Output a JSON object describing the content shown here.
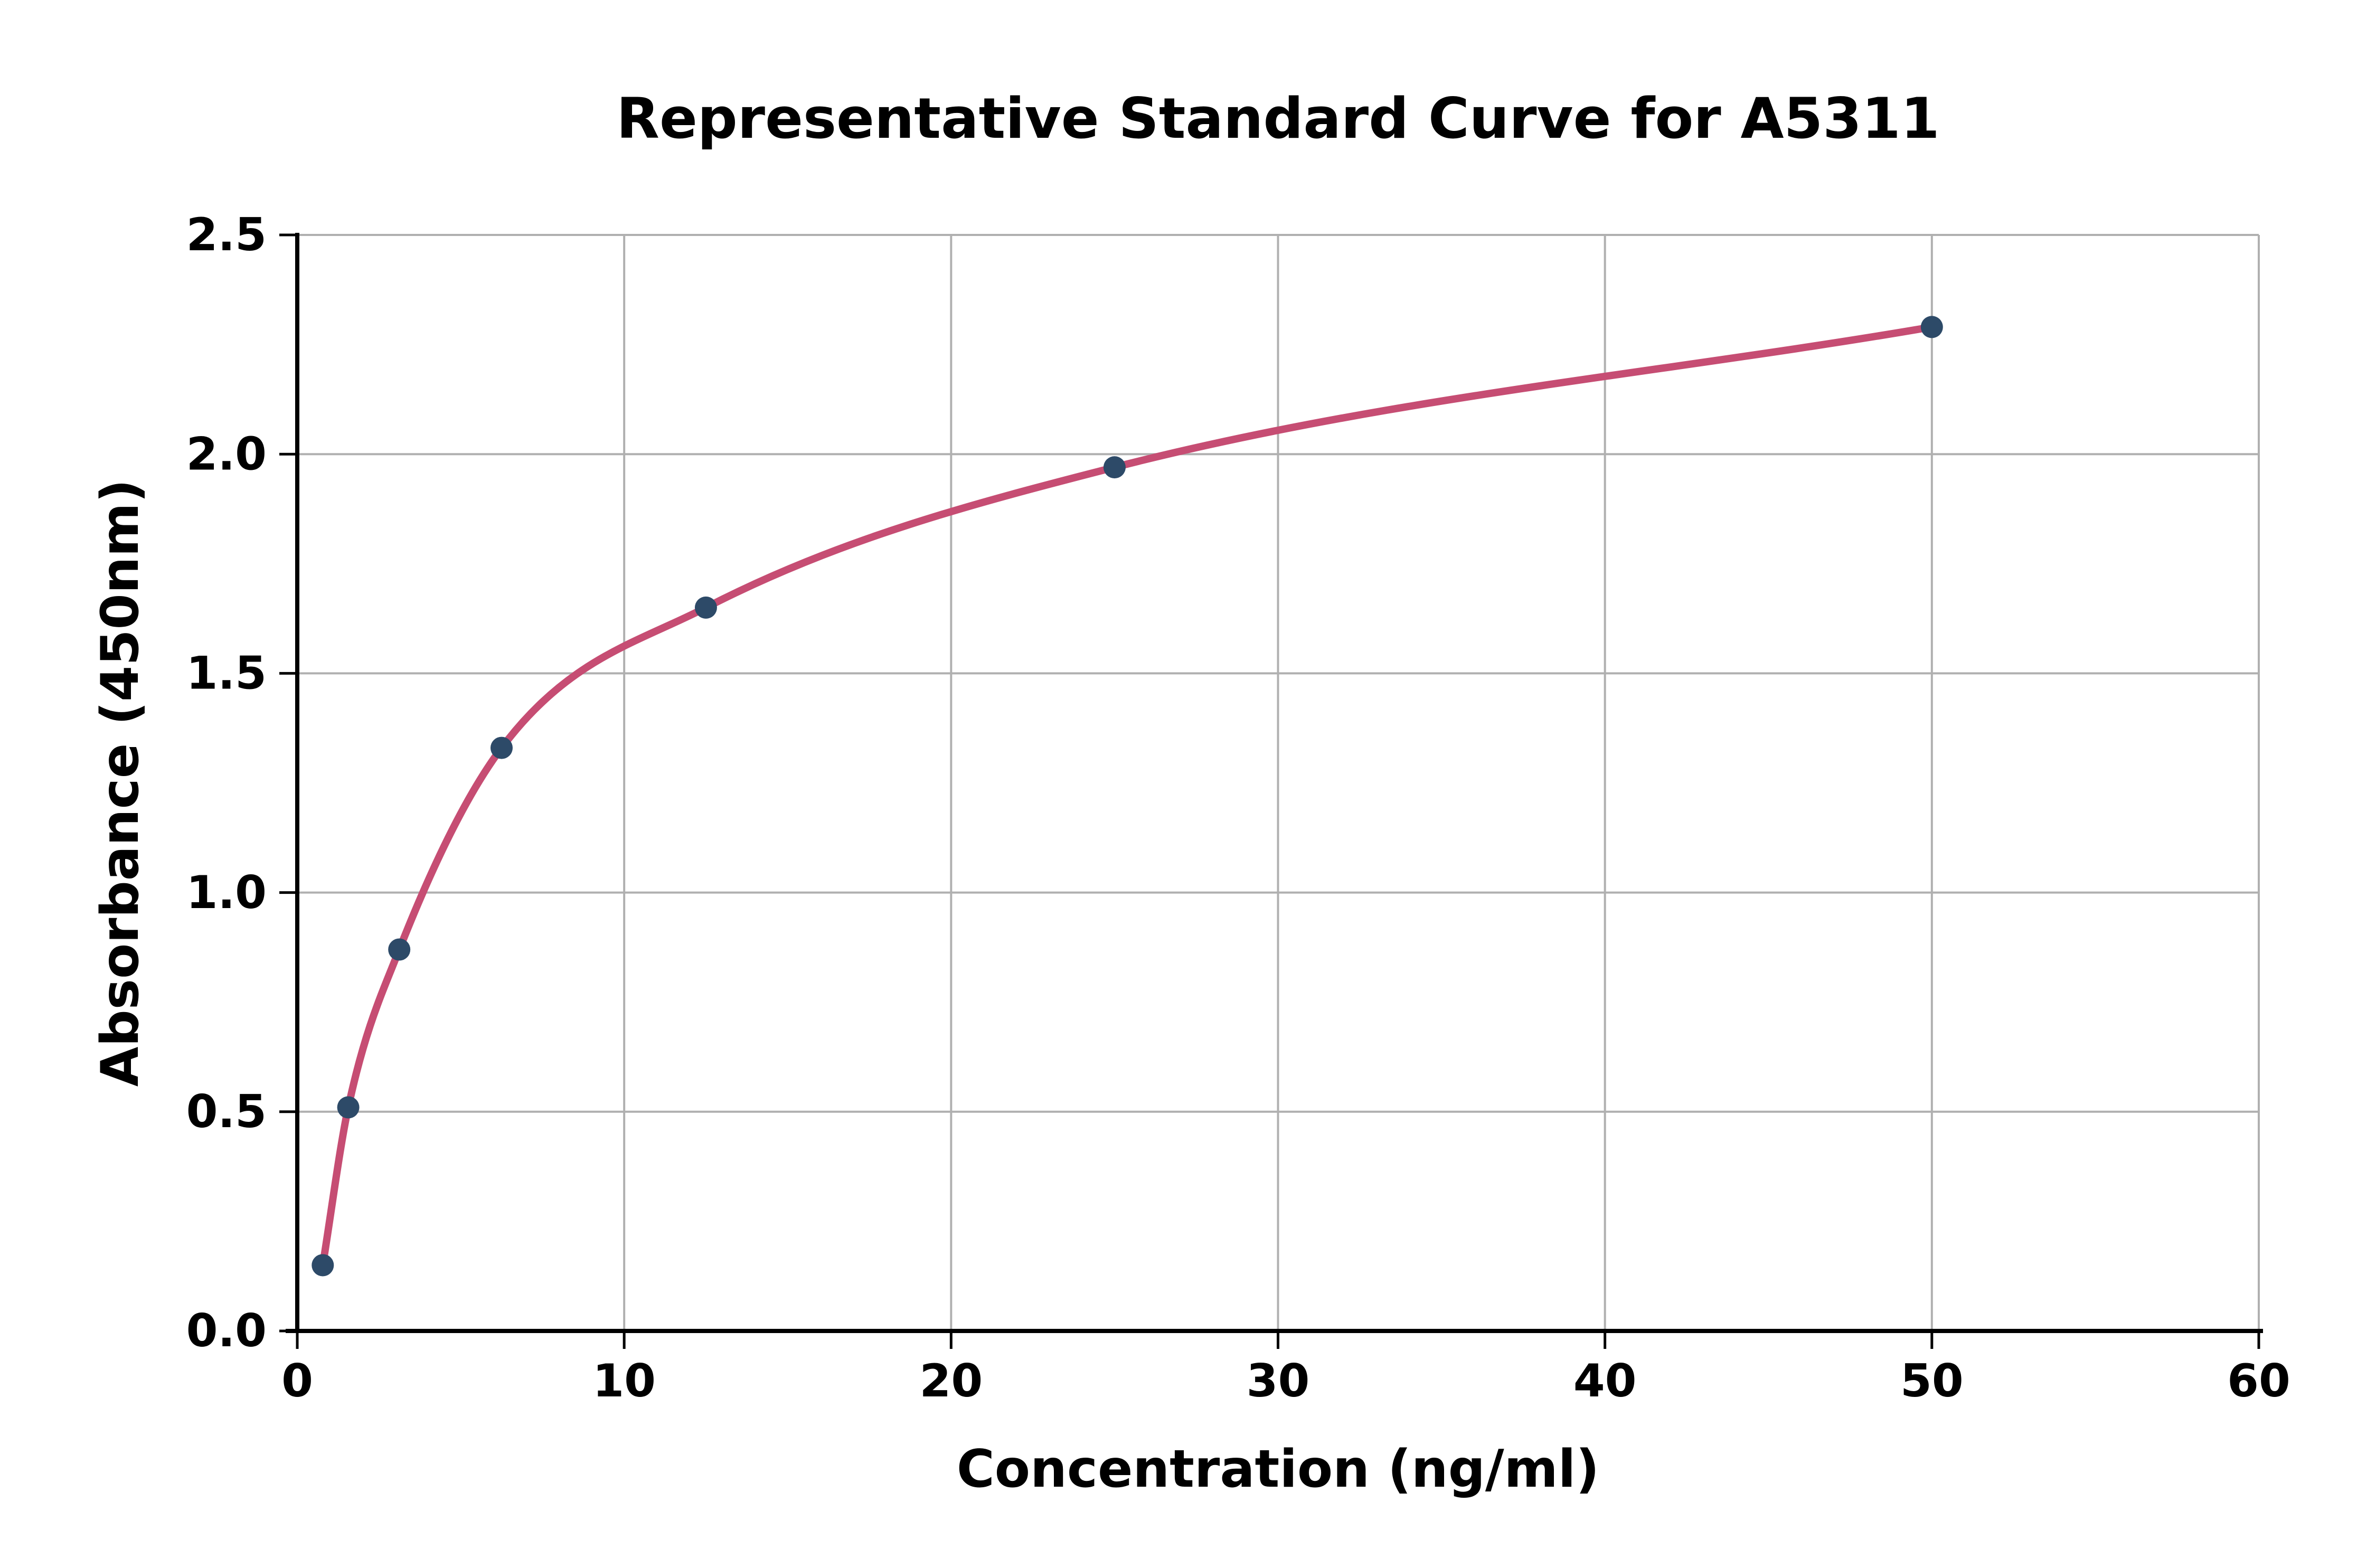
{
  "title": "Representative Standard Curve for A5311",
  "chart_data": {
    "type": "scatter",
    "title": "Representative Standard Curve for A5311",
    "xlabel": "Concentration (ng/ml)",
    "ylabel": "Absorbance (450nm)",
    "x": [
      0.78,
      1.56,
      3.12,
      6.25,
      12.5,
      25,
      50
    ],
    "y": [
      0.15,
      0.51,
      0.87,
      1.33,
      1.65,
      1.97,
      2.29
    ],
    "series": [
      {
        "name": "standards",
        "x": [
          0.78,
          1.56,
          3.12,
          6.25,
          12.5,
          25,
          50
        ],
        "y": [
          0.15,
          0.51,
          0.87,
          1.33,
          1.65,
          1.97,
          2.29
        ]
      }
    ],
    "fit_curve": "smooth monotone curve through points, drawn from first to last point",
    "xlim": [
      0,
      60
    ],
    "ylim": [
      0,
      2.5
    ],
    "xticks": [
      0,
      10,
      20,
      30,
      40,
      50,
      60
    ],
    "yticks": [
      0.0,
      0.5,
      1.0,
      1.5,
      2.0,
      2.5
    ],
    "ytick_decimals": 1,
    "grid": true,
    "legend": "none",
    "colors": {
      "curve": "#c64d73",
      "marker": "#2d4a68",
      "grid": "#b0b0b0",
      "axis": "#000000",
      "text": "#000000",
      "background": "#ffffff"
    }
  }
}
